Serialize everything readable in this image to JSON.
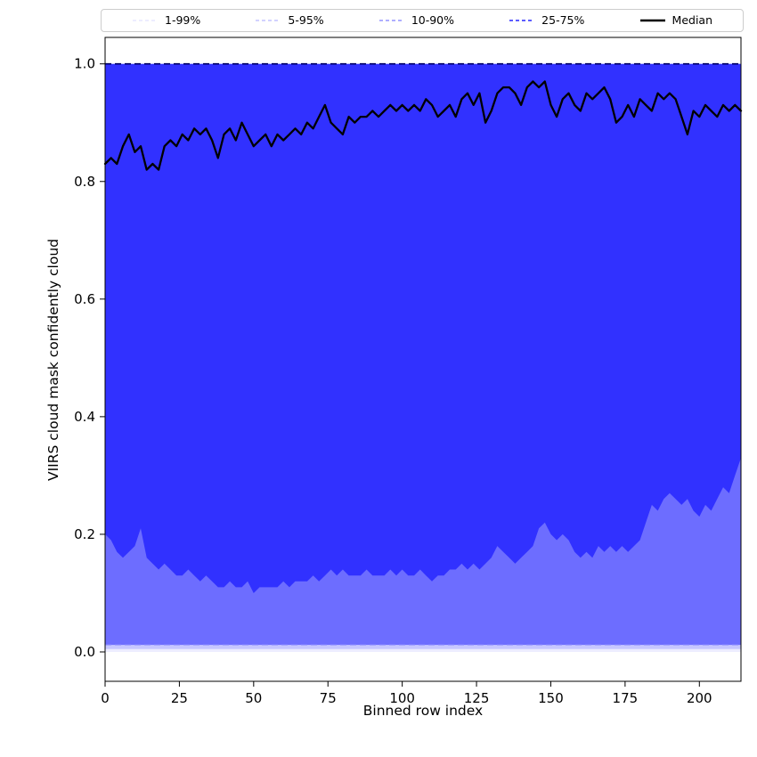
{
  "figure": {
    "background": "#ffffff"
  },
  "legend": {
    "items": [
      {
        "label": "1-99%",
        "color": "rgba(0,0,255,0.12)",
        "dash": "4 3",
        "width": 1.3
      },
      {
        "label": "5-95%",
        "color": "rgba(0,0,255,0.28)",
        "dash": "4 3",
        "width": 1.3
      },
      {
        "label": "10-90%",
        "color": "rgba(0,0,255,0.50)",
        "dash": "4 3",
        "width": 1.3
      },
      {
        "label": "25-75%",
        "color": "rgba(0,0,255,0.85)",
        "dash": "4 3",
        "width": 1.6
      },
      {
        "label": "Median",
        "color": "#000000",
        "dash": "",
        "width": 2.6
      }
    ]
  },
  "chart_data": {
    "type": "area",
    "title": "",
    "xlabel": "Binned row index",
    "ylabel": "VIIRS cloud mask confidently cloud",
    "xlim": [
      0,
      214
    ],
    "ylim": [
      -0.05,
      1.045
    ],
    "grid": false,
    "legend_position": "top",
    "xticks": {
      "values": [
        0,
        25,
        50,
        75,
        100,
        125,
        150,
        175,
        200
      ],
      "labels": [
        "0",
        "25",
        "50",
        "75",
        "100",
        "125",
        "150",
        "175",
        "200"
      ]
    },
    "yticks": {
      "values": [
        0,
        0.2,
        0.4,
        0.6,
        0.8,
        1
      ],
      "labels": [
        "0.0",
        "0.2",
        "0.4",
        "0.6",
        "0.8",
        "1.0"
      ]
    },
    "x": [
      0,
      2,
      4,
      6,
      8,
      10,
      12,
      14,
      16,
      18,
      20,
      22,
      24,
      26,
      28,
      30,
      32,
      34,
      36,
      38,
      40,
      42,
      44,
      46,
      48,
      50,
      52,
      54,
      56,
      58,
      60,
      62,
      64,
      66,
      68,
      70,
      72,
      74,
      76,
      78,
      80,
      82,
      84,
      86,
      88,
      90,
      92,
      94,
      96,
      98,
      100,
      102,
      104,
      106,
      108,
      110,
      112,
      114,
      116,
      118,
      120,
      122,
      124,
      126,
      128,
      130,
      132,
      134,
      136,
      138,
      140,
      142,
      144,
      146,
      148,
      150,
      152,
      154,
      156,
      158,
      160,
      162,
      164,
      166,
      168,
      170,
      172,
      174,
      176,
      178,
      180,
      182,
      184,
      186,
      188,
      190,
      192,
      194,
      196,
      198,
      200,
      202,
      204,
      206,
      208,
      210,
      212,
      214
    ],
    "percentiles": {
      "p01": 0.0,
      "p05": 0.005,
      "p10": 0.012,
      "p25": [
        0.2,
        0.19,
        0.17,
        0.16,
        0.17,
        0.18,
        0.21,
        0.16,
        0.15,
        0.14,
        0.15,
        0.14,
        0.13,
        0.13,
        0.14,
        0.13,
        0.12,
        0.13,
        0.12,
        0.11,
        0.11,
        0.12,
        0.11,
        0.11,
        0.12,
        0.1,
        0.11,
        0.11,
        0.11,
        0.11,
        0.12,
        0.11,
        0.12,
        0.12,
        0.12,
        0.13,
        0.12,
        0.13,
        0.14,
        0.13,
        0.14,
        0.13,
        0.13,
        0.13,
        0.14,
        0.13,
        0.13,
        0.13,
        0.14,
        0.13,
        0.14,
        0.13,
        0.13,
        0.14,
        0.13,
        0.12,
        0.13,
        0.13,
        0.14,
        0.14,
        0.15,
        0.14,
        0.15,
        0.14,
        0.15,
        0.16,
        0.18,
        0.17,
        0.16,
        0.15,
        0.16,
        0.17,
        0.18,
        0.21,
        0.22,
        0.2,
        0.19,
        0.2,
        0.19,
        0.17,
        0.16,
        0.17,
        0.16,
        0.18,
        0.17,
        0.18,
        0.17,
        0.18,
        0.17,
        0.18,
        0.19,
        0.22,
        0.25,
        0.24,
        0.26,
        0.27,
        0.26,
        0.25,
        0.26,
        0.24,
        0.23,
        0.25,
        0.24,
        0.26,
        0.28,
        0.27,
        0.3,
        0.33
      ],
      "median": [
        0.83,
        0.84,
        0.83,
        0.86,
        0.88,
        0.85,
        0.86,
        0.82,
        0.83,
        0.82,
        0.86,
        0.87,
        0.86,
        0.88,
        0.87,
        0.89,
        0.88,
        0.89,
        0.87,
        0.84,
        0.88,
        0.89,
        0.87,
        0.9,
        0.88,
        0.86,
        0.87,
        0.88,
        0.86,
        0.88,
        0.87,
        0.88,
        0.89,
        0.88,
        0.9,
        0.89,
        0.91,
        0.93,
        0.9,
        0.89,
        0.88,
        0.91,
        0.9,
        0.91,
        0.91,
        0.92,
        0.91,
        0.92,
        0.93,
        0.92,
        0.93,
        0.92,
        0.93,
        0.92,
        0.94,
        0.93,
        0.91,
        0.92,
        0.93,
        0.91,
        0.94,
        0.95,
        0.93,
        0.95,
        0.9,
        0.92,
        0.95,
        0.96,
        0.96,
        0.95,
        0.93,
        0.96,
        0.97,
        0.96,
        0.97,
        0.93,
        0.91,
        0.94,
        0.95,
        0.93,
        0.92,
        0.95,
        0.94,
        0.95,
        0.96,
        0.94,
        0.9,
        0.91,
        0.93,
        0.91,
        0.94,
        0.93,
        0.92,
        0.95,
        0.94,
        0.95,
        0.94,
        0.91,
        0.88,
        0.92,
        0.91,
        0.93,
        0.92,
        0.91,
        0.93,
        0.92,
        0.93,
        0.92
      ],
      "p75": 1.0,
      "p90": 1.0,
      "p95": 1.0,
      "p99": 1.0
    },
    "bands": [
      {
        "name": "1-99",
        "lower": "p01",
        "upper": "p99",
        "color": "rgba(0,0,255,0.07)"
      },
      {
        "name": "5-95",
        "lower": "p05",
        "upper": "p95",
        "color": "rgba(0,0,255,0.16)"
      },
      {
        "name": "10-90",
        "lower": "p10",
        "upper": "p90",
        "color": "rgba(0,0,255,0.45)"
      },
      {
        "name": "25-75",
        "lower": "p25",
        "upper": "p75",
        "color": "rgba(0,0,255,0.55)"
      }
    ],
    "edge_lines": [
      {
        "y": "p75",
        "color": "#000066",
        "dash": "7 4",
        "width": 1.6
      },
      {
        "y": "p10",
        "color": "rgba(140,140,255,0.9)",
        "dash": "7 4",
        "width": 1.1
      }
    ],
    "median_style": {
      "color": "#000000",
      "width": 2.3
    }
  }
}
